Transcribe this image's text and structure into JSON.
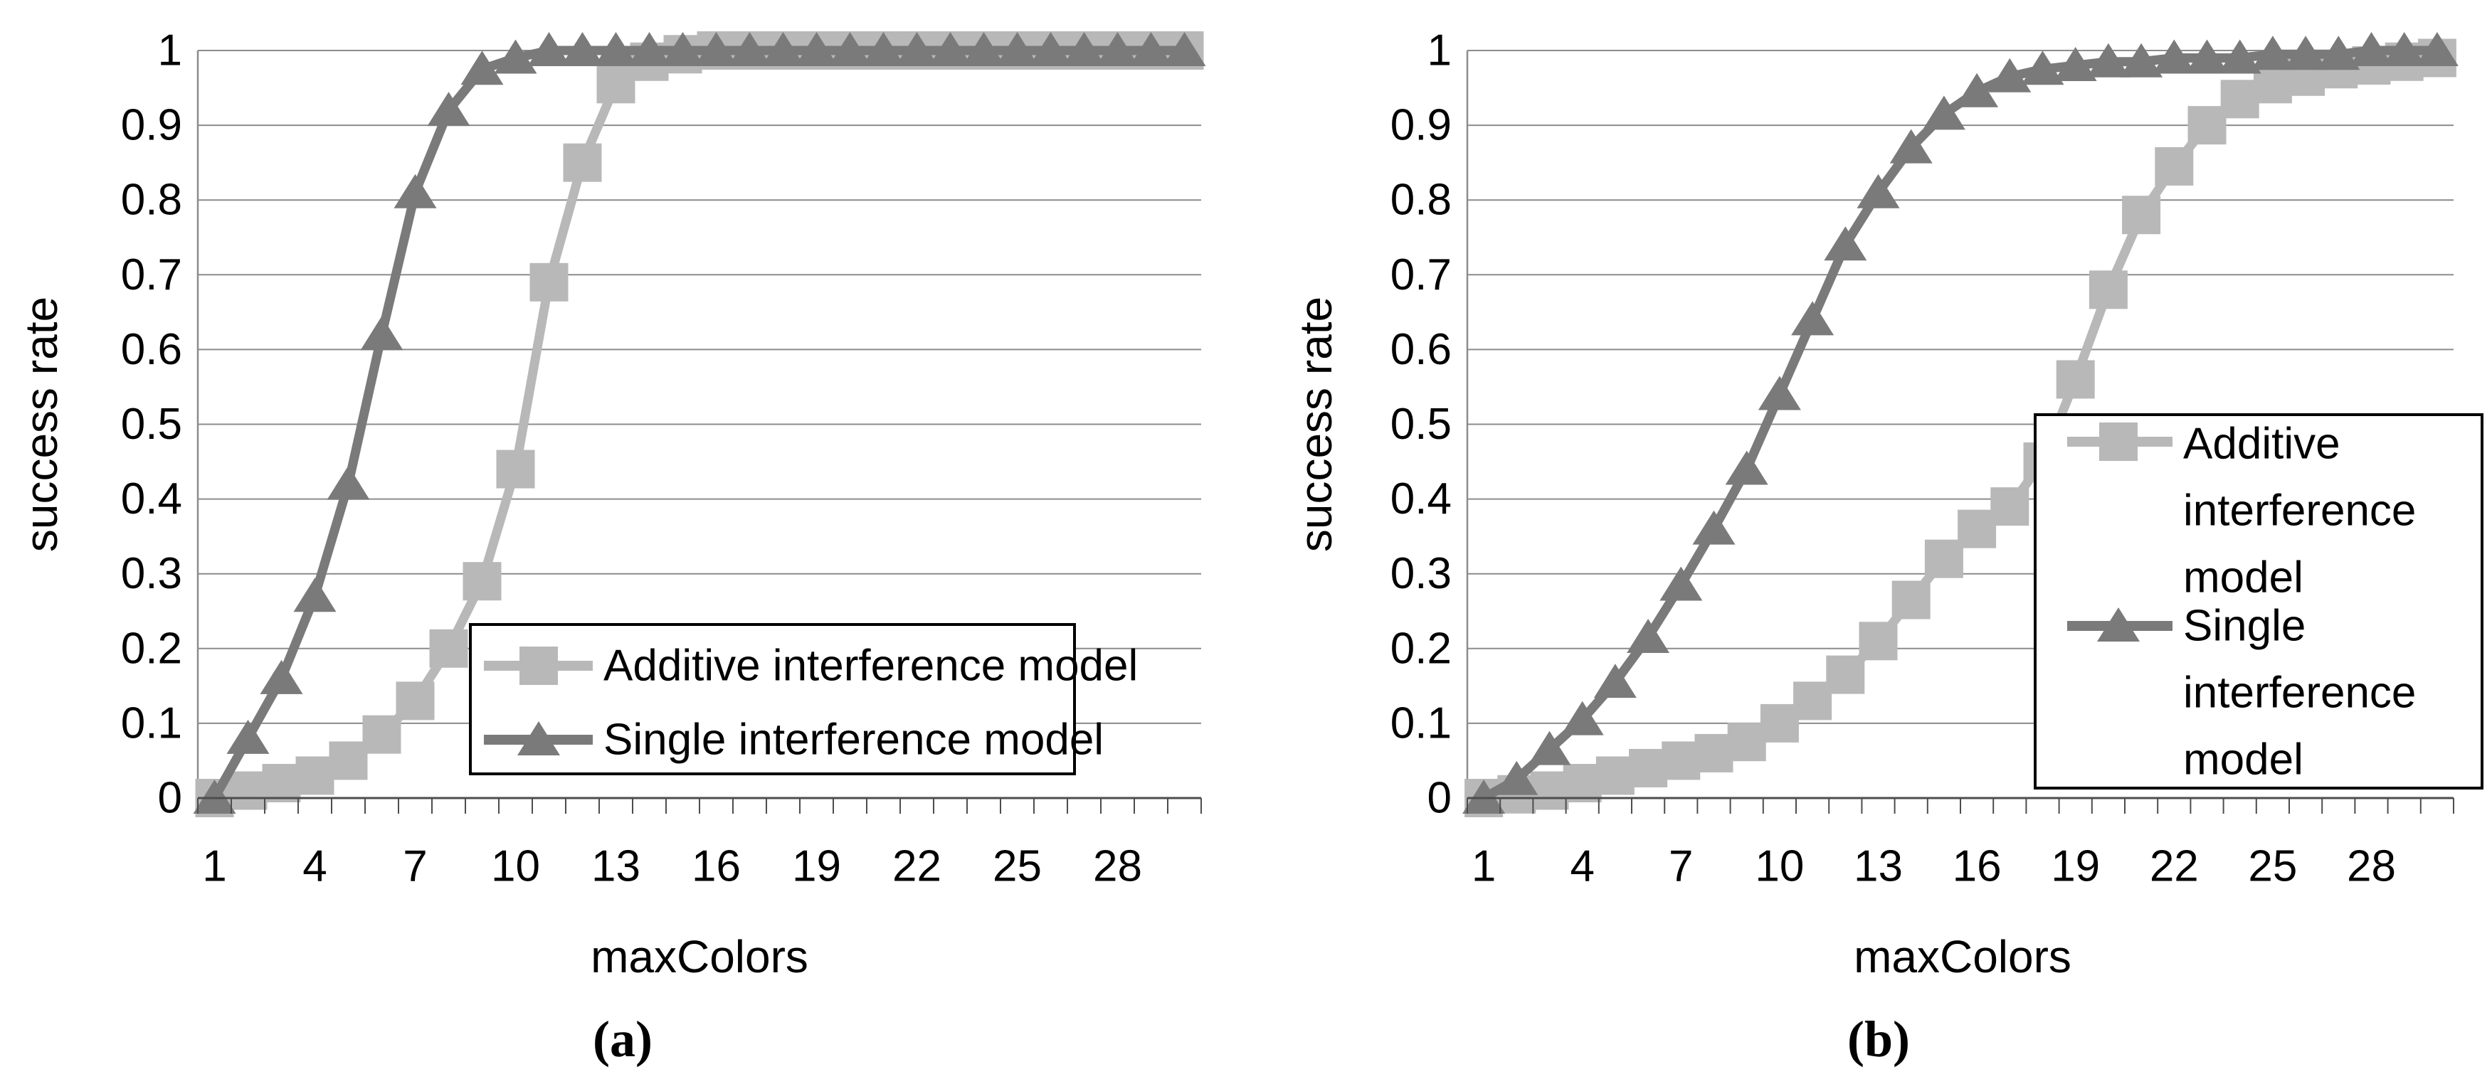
{
  "figure": {
    "background": "#ffffff",
    "captions": {
      "a": "(a)",
      "b": "(b)"
    },
    "colors": {
      "additive_series": "#b8b8b8",
      "single_series": "#7a7a7a",
      "gridline": "#8c8c8c",
      "axis_line": "#4d4d4d",
      "text": "#000000",
      "legend_border": "#000000",
      "legend_background": "#ffffff"
    }
  },
  "chart_data": [
    {
      "id": "a",
      "type": "line",
      "title": "",
      "xlabel": "maxColors",
      "ylabel": "success rate",
      "xlim": [
        1,
        30
      ],
      "ylim": [
        0,
        1
      ],
      "grid": "horizontal",
      "legend_position": "inside-lower-right",
      "x": [
        1,
        2,
        3,
        4,
        5,
        6,
        7,
        8,
        9,
        10,
        11,
        12,
        13,
        14,
        15,
        16,
        17,
        18,
        19,
        20,
        21,
        22,
        23,
        24,
        25,
        26,
        27,
        28,
        29,
        30
      ],
      "x_tick_values": [
        1,
        4,
        7,
        10,
        13,
        16,
        19,
        22,
        25,
        28
      ],
      "x_tick_labels": [
        "1",
        "4",
        "7",
        "10",
        "13",
        "16",
        "19",
        "22",
        "25",
        "28"
      ],
      "y_tick_values": [
        0,
        0.1,
        0.2,
        0.3,
        0.4,
        0.5,
        0.6,
        0.7,
        0.8,
        0.9,
        1
      ],
      "y_tick_labels": [
        "0",
        "0.1",
        "0.2",
        "0.3",
        "0.4",
        "0.5",
        "0.6",
        "0.7",
        "0.8",
        "0.9",
        "1"
      ],
      "series": [
        {
          "name": "Additive interference model",
          "legend_lines": [
            "Additive interference model"
          ],
          "marker": "square",
          "color": "#b8b8b8",
          "values": [
            0,
            0.01,
            0.02,
            0.03,
            0.05,
            0.085,
            0.13,
            0.2,
            0.29,
            0.44,
            0.69,
            0.85,
            0.955,
            0.985,
            0.995,
            1,
            1,
            1,
            1,
            1,
            1,
            1,
            1,
            1,
            1,
            1,
            1,
            1,
            1,
            1
          ]
        },
        {
          "name": "Single interference model",
          "legend_lines": [
            "Single interference model"
          ],
          "marker": "triangle",
          "color": "#7a7a7a",
          "values": [
            0,
            0.08,
            0.16,
            0.27,
            0.42,
            0.62,
            0.81,
            0.92,
            0.975,
            0.99,
            1,
            1,
            1,
            1,
            1,
            1,
            1,
            1,
            1,
            1,
            1,
            1,
            1,
            1,
            1,
            1,
            1,
            1,
            1,
            1
          ]
        }
      ]
    },
    {
      "id": "b",
      "type": "line",
      "title": "",
      "xlabel": "maxColors",
      "ylabel": "success rate",
      "xlim": [
        1,
        30
      ],
      "ylim": [
        0,
        1
      ],
      "grid": "horizontal",
      "legend_position": "inside-right",
      "x": [
        1,
        2,
        3,
        4,
        5,
        6,
        7,
        8,
        9,
        10,
        11,
        12,
        13,
        14,
        15,
        16,
        17,
        18,
        19,
        20,
        21,
        22,
        23,
        24,
        25,
        26,
        27,
        28,
        29,
        30
      ],
      "x_tick_values": [
        1,
        4,
        7,
        10,
        13,
        16,
        19,
        22,
        25,
        28
      ],
      "x_tick_labels": [
        "1",
        "4",
        "7",
        "10",
        "13",
        "16",
        "19",
        "22",
        "25",
        "28"
      ],
      "y_tick_values": [
        0,
        0.1,
        0.2,
        0.3,
        0.4,
        0.5,
        0.6,
        0.7,
        0.8,
        0.9,
        1
      ],
      "y_tick_labels": [
        "0",
        "0.1",
        "0.2",
        "0.3",
        "0.4",
        "0.5",
        "0.6",
        "0.7",
        "0.8",
        "0.9",
        "1"
      ],
      "series": [
        {
          "name": "Additive interference model",
          "legend_lines": [
            "Additive",
            "interference",
            "model"
          ],
          "marker": "square",
          "color": "#b8b8b8",
          "values": [
            0,
            0.005,
            0.01,
            0.02,
            0.03,
            0.04,
            0.05,
            0.06,
            0.075,
            0.1,
            0.13,
            0.165,
            0.21,
            0.265,
            0.32,
            0.36,
            0.39,
            0.45,
            0.56,
            0.68,
            0.78,
            0.845,
            0.9,
            0.935,
            0.955,
            0.965,
            0.975,
            0.98,
            0.985,
            0.99
          ]
        },
        {
          "name": "Single interference model",
          "legend_lines": [
            "Single",
            "interference",
            "model"
          ],
          "marker": "triangle",
          "color": "#7a7a7a",
          "values": [
            0,
            0.025,
            0.065,
            0.105,
            0.155,
            0.215,
            0.285,
            0.36,
            0.44,
            0.54,
            0.64,
            0.74,
            0.81,
            0.87,
            0.915,
            0.945,
            0.965,
            0.975,
            0.98,
            0.985,
            0.985,
            0.99,
            0.99,
            0.99,
            0.995,
            0.995,
            0.995,
            1,
            1,
            1
          ]
        }
      ]
    }
  ]
}
